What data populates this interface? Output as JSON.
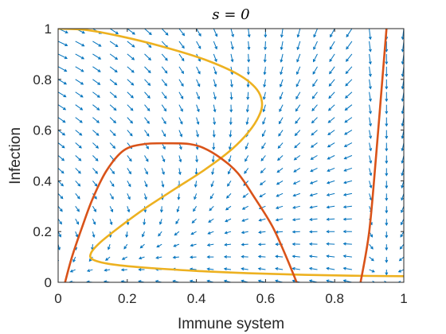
{
  "chart_data": {
    "type": "line",
    "title": "s = 0",
    "xlabel": "Immune system",
    "ylabel": "Infection",
    "xlim": [
      0,
      1
    ],
    "ylim": [
      0,
      1
    ],
    "x_ticks": [
      "0",
      "0.2",
      "0.4",
      "0.6",
      "0.8",
      "1"
    ],
    "y_ticks": [
      "0",
      "0.2",
      "0.4",
      "0.6",
      "0.8",
      "1"
    ],
    "grid": false,
    "colors": {
      "quiver": "#0072BD",
      "orange": "#D95319",
      "yellow": "#EDB120",
      "axis": "#262626"
    },
    "quiver_field": {
      "nx": 20,
      "ny": 20
    },
    "series": [
      {
        "color": "#EDB120",
        "points": [
          [
            0.0,
            1.0
          ],
          [
            0.08,
            0.995
          ],
          [
            0.18,
            0.97
          ],
          [
            0.3,
            0.93
          ],
          [
            0.42,
            0.88
          ],
          [
            0.52,
            0.82
          ],
          [
            0.575,
            0.76
          ],
          [
            0.59,
            0.7
          ],
          [
            0.575,
            0.64
          ],
          [
            0.54,
            0.575
          ],
          [
            0.49,
            0.51
          ],
          [
            0.42,
            0.44
          ],
          [
            0.34,
            0.37
          ],
          [
            0.25,
            0.29
          ],
          [
            0.17,
            0.21
          ],
          [
            0.12,
            0.155
          ],
          [
            0.095,
            0.115
          ],
          [
            0.1,
            0.09
          ],
          [
            0.15,
            0.072
          ],
          [
            0.25,
            0.058
          ],
          [
            0.4,
            0.045
          ],
          [
            0.55,
            0.036
          ],
          [
            0.7,
            0.03
          ],
          [
            0.85,
            0.026
          ],
          [
            1.0,
            0.024
          ]
        ]
      },
      {
        "color": "#D95319",
        "points": [
          [
            0.02,
            0.0
          ],
          [
            0.04,
            0.1
          ],
          [
            0.07,
            0.22
          ],
          [
            0.1,
            0.33
          ],
          [
            0.14,
            0.44
          ],
          [
            0.19,
            0.52
          ],
          [
            0.25,
            0.545
          ],
          [
            0.33,
            0.548
          ],
          [
            0.38,
            0.545
          ],
          [
            0.42,
            0.53
          ],
          [
            0.47,
            0.49
          ],
          [
            0.52,
            0.43
          ],
          [
            0.57,
            0.33
          ],
          [
            0.62,
            0.22
          ],
          [
            0.66,
            0.1
          ],
          [
            0.69,
            0.0
          ]
        ]
      },
      {
        "color": "#D95319",
        "points": [
          [
            0.875,
            0.0
          ],
          [
            0.9,
            0.2
          ],
          [
            0.92,
            0.5
          ],
          [
            0.935,
            0.75
          ],
          [
            0.95,
            1.0
          ]
        ]
      }
    ]
  }
}
